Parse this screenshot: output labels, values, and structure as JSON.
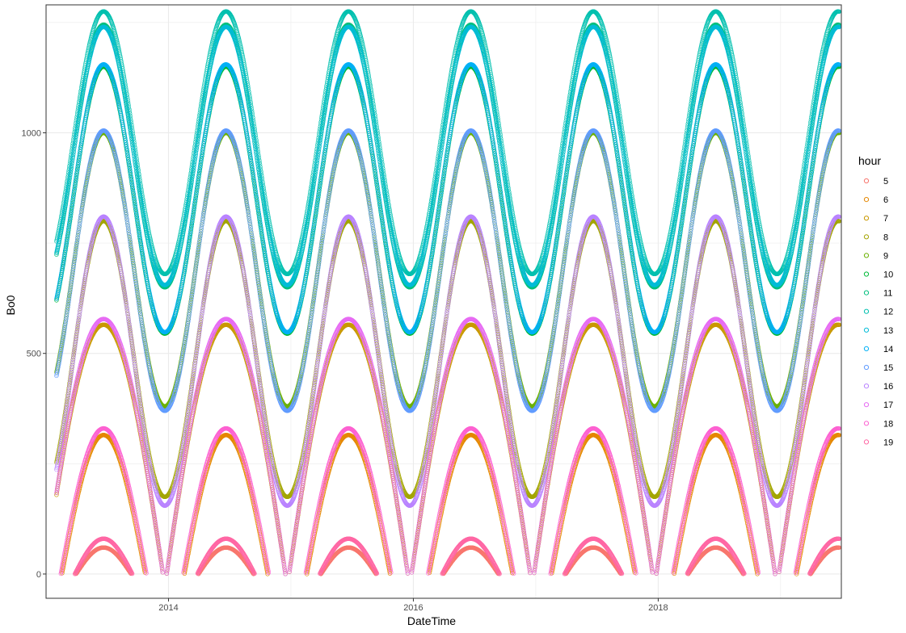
{
  "chart_data": {
    "type": "scatter",
    "title": "",
    "xlabel": "DateTime",
    "ylabel": "Bo0",
    "x_ticks": [
      "2014",
      "2016",
      "2018"
    ],
    "x_tick_years": [
      2014,
      2016,
      2018
    ],
    "xlim": [
      "2013-01-01",
      "2019-07-01"
    ],
    "y_ticks": [
      0,
      500,
      1000
    ],
    "ylim": [
      -55,
      1290
    ],
    "data_range": [
      "2013-02-01",
      "2019-06-25"
    ],
    "grid": true,
    "marker": "open-circle",
    "legend": {
      "title": "hour",
      "placement": "right"
    },
    "series": [
      {
        "name": "5",
        "color": "#F8766D",
        "peak": 60,
        "trough": 0,
        "daylight_fraction": 0.45
      },
      {
        "name": "6",
        "color": "#E58700",
        "peak": 315,
        "trough": 0,
        "daylight_fraction": 0.68
      },
      {
        "name": "7",
        "color": "#C99800",
        "peak": 565,
        "trough": 0,
        "daylight_fraction": 0.97
      },
      {
        "name": "8",
        "color": "#A3A500",
        "peak": 800,
        "trough": 175,
        "daylight_fraction": 1.0
      },
      {
        "name": "9",
        "color": "#6BB100",
        "peak": 1000,
        "trough": 380,
        "daylight_fraction": 1.0
      },
      {
        "name": "10",
        "color": "#00BA38",
        "peak": 1150,
        "trough": 545,
        "daylight_fraction": 1.0
      },
      {
        "name": "11",
        "color": "#00BF7D",
        "peak": 1245,
        "trough": 650,
        "daylight_fraction": 1.0
      },
      {
        "name": "12",
        "color": "#00C0AF",
        "peak": 1275,
        "trough": 680,
        "daylight_fraction": 1.0
      },
      {
        "name": "13",
        "color": "#00BCD8",
        "peak": 1240,
        "trough": 655,
        "daylight_fraction": 1.0
      },
      {
        "name": "14",
        "color": "#00B0F6",
        "peak": 1155,
        "trough": 548,
        "daylight_fraction": 1.0
      },
      {
        "name": "15",
        "color": "#619CFF",
        "peak": 1005,
        "trough": 370,
        "daylight_fraction": 1.0
      },
      {
        "name": "16",
        "color": "#B983FF",
        "peak": 810,
        "trough": 155,
        "daylight_fraction": 1.0
      },
      {
        "name": "17",
        "color": "#E76BF3",
        "peak": 578,
        "trough": 0,
        "daylight_fraction": 0.97
      },
      {
        "name": "18",
        "color": "#FD61D1",
        "peak": 330,
        "trough": 0,
        "daylight_fraction": 0.7
      },
      {
        "name": "19",
        "color": "#FF67A4",
        "peak": 80,
        "trough": 0,
        "daylight_fraction": 0.47
      }
    ]
  }
}
